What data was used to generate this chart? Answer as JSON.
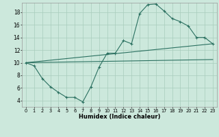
{
  "xlabel": "Humidex (Indice chaleur)",
  "bg_color": "#cce8dc",
  "grid_color": "#a8ccbc",
  "line_color": "#2a7060",
  "xlim": [
    -0.5,
    23.5
  ],
  "ylim": [
    3.0,
    19.5
  ],
  "xticks": [
    0,
    1,
    2,
    3,
    4,
    5,
    6,
    7,
    8,
    9,
    10,
    11,
    12,
    13,
    14,
    15,
    16,
    17,
    18,
    19,
    20,
    21,
    22,
    23
  ],
  "yticks": [
    4,
    6,
    8,
    10,
    12,
    14,
    16,
    18
  ],
  "zigzag_x": [
    0,
    1,
    2,
    3,
    4,
    5,
    6,
    7,
    8,
    9,
    10,
    11,
    12,
    13,
    14,
    15,
    16,
    17,
    18,
    19,
    20,
    21,
    22,
    23
  ],
  "zigzag_y": [
    10,
    9.5,
    7.5,
    6.2,
    5.3,
    4.5,
    4.5,
    3.8,
    6.2,
    9.3,
    11.5,
    11.5,
    13.5,
    13.0,
    17.8,
    19.2,
    19.3,
    18.2,
    17.0,
    16.5,
    15.8,
    14.0,
    14.0,
    13.0
  ],
  "line2_x": [
    0,
    23
  ],
  "line2_y": [
    10.0,
    13.0
  ],
  "line3_x": [
    0,
    23
  ],
  "line3_y": [
    10.0,
    10.5
  ]
}
